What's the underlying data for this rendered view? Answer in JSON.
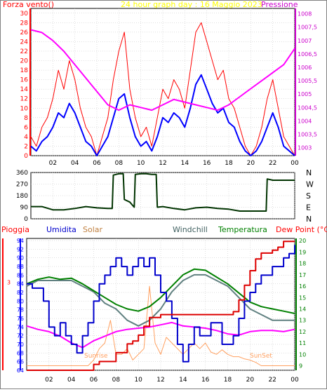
{
  "colors": {
    "bg": "#ffffff",
    "plot_bg": "#ffffff",
    "frame": "#000000",
    "grid": "#c0c0c0",
    "wind_gust": "#ff0000",
    "wind_avg": "#0000ff",
    "pressure": "#ff00ff",
    "direction": "#003300",
    "rain": "#dd0000",
    "humidity": "#0000cc",
    "solar": "#ffa060",
    "windchill": "#608080",
    "temperature": "#008000",
    "dewpoint": "#ff00ff",
    "axis_red": "#ff0000",
    "axis_blue": "#0000ff",
    "axis_magenta": "#cc00cc",
    "axis_green": "#008000",
    "title": "#ffff00"
  },
  "chart_data": [
    {
      "type": "line",
      "title": "24 hour graph day : 16 Maggio 2023",
      "left_label": "Forza vento()",
      "right_label": "Pressione",
      "x_ticks": [
        "02",
        "04",
        "06",
        "08",
        "10",
        "12",
        "14",
        "16",
        "18",
        "20",
        "22",
        "00"
      ],
      "x_range_hours": [
        0,
        24
      ],
      "y_left_ticks": [
        "30",
        "28",
        "26",
        "24",
        "22",
        "20",
        "18",
        "16",
        "14",
        "12",
        "10",
        "8",
        "6",
        "4",
        "2",
        "0"
      ],
      "y_left_range": [
        0,
        31
      ],
      "y_right_ticks": [
        "1008",
        "1007,5",
        "1007",
        "1006,5",
        "1006",
        "1005,5",
        "1005",
        "1004,5",
        "1004",
        "1003,5",
        "1003"
      ],
      "y_right_range": [
        1002.7,
        1008.2
      ],
      "grid": true,
      "series": [
        {
          "key": "gust",
          "x": [
            0,
            0.5,
            1,
            1.5,
            2,
            2.5,
            3,
            3.5,
            4,
            4.5,
            5,
            5.5,
            6,
            6.5,
            7,
            7.5,
            8,
            8.5,
            9,
            9.5,
            10,
            10.5,
            11,
            11.5,
            12,
            12.5,
            13,
            13.5,
            14,
            14.5,
            15,
            15.5,
            16,
            16.5,
            17,
            17.5,
            18,
            18.5,
            19,
            19.5,
            20,
            20.5,
            21,
            21.5,
            22,
            22.5,
            23,
            23.5,
            24
          ],
          "values": [
            4,
            2,
            6,
            8,
            12,
            18,
            14,
            20,
            16,
            10,
            6,
            4,
            0,
            4,
            8,
            16,
            22,
            26,
            14,
            8,
            4,
            6,
            2,
            8,
            14,
            12,
            16,
            14,
            10,
            18,
            26,
            28,
            24,
            20,
            16,
            18,
            12,
            10,
            6,
            2,
            0,
            2,
            6,
            12,
            16,
            10,
            4,
            2,
            0
          ]
        },
        {
          "key": "avg",
          "x": [
            0,
            0.5,
            1,
            1.5,
            2,
            2.5,
            3,
            3.5,
            4,
            4.5,
            5,
            5.5,
            6,
            6.5,
            7,
            7.5,
            8,
            8.5,
            9,
            9.5,
            10,
            10.5,
            11,
            11.5,
            12,
            12.5,
            13,
            13.5,
            14,
            14.5,
            15,
            15.5,
            16,
            16.5,
            17,
            17.5,
            18,
            18.5,
            19,
            19.5,
            20,
            20.5,
            21,
            21.5,
            22,
            22.5,
            23,
            23.5,
            24
          ],
          "values": [
            2,
            1,
            3,
            4,
            6,
            9,
            8,
            11,
            9,
            6,
            3,
            2,
            0,
            2,
            4,
            8,
            12,
            13,
            8,
            4,
            2,
            3,
            1,
            4,
            8,
            7,
            9,
            8,
            6,
            10,
            15,
            17,
            14,
            11,
            9,
            10,
            7,
            6,
            3,
            1,
            0,
            1,
            3,
            6,
            9,
            6,
            2,
            1,
            0
          ]
        },
        {
          "key": "pressure",
          "x": [
            0,
            1,
            2,
            3,
            4,
            5,
            6,
            7,
            8,
            9,
            10,
            11,
            12,
            13,
            14,
            15,
            16,
            17,
            18,
            19,
            20,
            21,
            22,
            23,
            24
          ],
          "values": [
            1007.4,
            1007.3,
            1007.0,
            1006.6,
            1006.1,
            1005.6,
            1005.1,
            1004.6,
            1004.4,
            1004.6,
            1004.5,
            1004.4,
            1004.6,
            1004.8,
            1004.7,
            1004.6,
            1004.5,
            1004.4,
            1004.6,
            1004.9,
            1005.2,
            1005.5,
            1005.8,
            1006.1,
            1006.7
          ]
        }
      ]
    },
    {
      "type": "line",
      "title": "",
      "y_right_ticks": [
        "N",
        "W",
        "S",
        "E",
        "N"
      ],
      "y_left_ticks": [
        "360",
        "270",
        "180",
        "90",
        "0"
      ],
      "y_left_range": [
        0,
        360
      ],
      "x_range_hours": [
        0,
        24
      ],
      "x_ticks": [
        "02",
        "04",
        "06",
        "08",
        "10",
        "12",
        "14",
        "16",
        "18",
        "20",
        "22",
        "00"
      ],
      "grid": true,
      "series": [
        {
          "key": "direction",
          "x": [
            0,
            1,
            2,
            3,
            4,
            5,
            6,
            7,
            7.4,
            7.5,
            8,
            8.4,
            8.5,
            9,
            9.4,
            9.5,
            10,
            10.5,
            11,
            11.4,
            11.5,
            12,
            13,
            14,
            15,
            16,
            17,
            18,
            19,
            20,
            21,
            21.4,
            21.5,
            22,
            23,
            24
          ],
          "values": [
            95,
            95,
            70,
            70,
            80,
            95,
            85,
            80,
            80,
            340,
            350,
            350,
            150,
            130,
            90,
            345,
            350,
            350,
            345,
            345,
            90,
            95,
            80,
            70,
            85,
            90,
            80,
            75,
            60,
            60,
            60,
            60,
            310,
            300,
            300,
            300
          ]
        }
      ]
    },
    {
      "type": "line",
      "title": "",
      "legend": [
        "Pioggia",
        "Umidita",
        "Solar",
        "Windchill",
        "Temperatura",
        "Dew Point (°C)"
      ],
      "legend_placement": "top",
      "x_ticks": [
        "02",
        "04",
        "06",
        "08",
        "10",
        "12",
        "14",
        "16",
        "18",
        "20",
        "22",
        "00"
      ],
      "x_range_hours": [
        0,
        24
      ],
      "y_left_ticks": [
        "94",
        "92",
        "90",
        "88",
        "86",
        "84",
        "82",
        "80",
        "78",
        "76",
        "74",
        "72",
        "70",
        "68",
        "66",
        "64"
      ],
      "y_left_range": [
        64,
        94.5
      ],
      "y_right_ticks": [
        "20",
        "19",
        "18",
        "17",
        "16",
        "15",
        "14",
        "13",
        "12",
        "11",
        "10",
        "9"
      ],
      "y_right_range": [
        8.6,
        20.2
      ],
      "rain_axis_label": "3",
      "annotations": [
        "Sunrise",
        "SunSet"
      ],
      "grid": true,
      "series": [
        {
          "key": "rain",
          "x": [
            0,
            5.5,
            6,
            6.5,
            7,
            8,
            9,
            9.5,
            10,
            10.5,
            11,
            12,
            14,
            16,
            18,
            18.5,
            19,
            19.5,
            20,
            20.5,
            21,
            22,
            22.5,
            23,
            24
          ],
          "values": [
            0,
            0,
            0.2,
            0.3,
            0.3,
            0.6,
            0.9,
            1.0,
            1.2,
            1.5,
            1.8,
            1.9,
            1.9,
            1.9,
            1.9,
            2.0,
            2.4,
            2.9,
            3.4,
            3.8,
            4.0,
            4.1,
            4.2,
            4.4,
            4.4
          ]
        },
        {
          "key": "humidity",
          "x": [
            0,
            0.5,
            1,
            1.5,
            2,
            2.5,
            3,
            3.5,
            4,
            4.5,
            5,
            5.5,
            6,
            6.5,
            7,
            7.5,
            8,
            8.5,
            9,
            9.5,
            10,
            10.5,
            11,
            11.5,
            12,
            12.5,
            13,
            13.5,
            14,
            14.5,
            15,
            15.5,
            16,
            16.5,
            17,
            17.5,
            18,
            18.5,
            19,
            19.5,
            20,
            20.5,
            21,
            21.5,
            22,
            22.5,
            23,
            23.5,
            24
          ],
          "values": [
            84,
            83,
            83,
            80,
            74,
            72,
            75,
            72,
            70,
            68,
            72,
            75,
            80,
            84,
            86,
            88,
            90,
            88,
            86,
            88,
            90,
            88,
            90,
            86,
            82,
            80,
            76,
            70,
            66,
            70,
            74,
            72,
            72,
            75,
            75,
            70,
            70,
            72,
            76,
            80,
            82,
            84,
            86,
            86,
            88,
            88,
            90,
            91,
            93
          ]
        },
        {
          "key": "solar",
          "x": [
            0,
            5.5,
            6,
            6.5,
            7,
            7.5,
            8,
            8.5,
            9,
            9.5,
            10,
            10.5,
            11,
            11.5,
            12,
            12.5,
            13,
            13.5,
            14,
            14.5,
            15,
            15.5,
            16,
            16.5,
            17,
            17.5,
            18,
            18.5,
            19,
            19.5,
            20,
            20.5,
            21,
            24
          ],
          "values": [
            9,
            9,
            9.5,
            10.5,
            11,
            13,
            10,
            10,
            10.5,
            9.5,
            10,
            10.5,
            16,
            11,
            10,
            11.5,
            11,
            10.5,
            10,
            10.5,
            11,
            10.5,
            11,
            10.2,
            10,
            10.4,
            10,
            9.8,
            9.8,
            9.6,
            9.5,
            9.3,
            9,
            9
          ]
        },
        {
          "key": "windchill",
          "x": [
            0,
            1,
            2,
            3,
            4,
            5,
            6,
            7,
            8,
            9,
            10,
            11,
            12,
            13,
            14,
            15,
            16,
            17,
            18,
            19,
            20,
            21,
            22,
            23,
            24
          ],
          "values": [
            16,
            16.5,
            16.5,
            16.5,
            16.5,
            16,
            15.5,
            14.5,
            14,
            13,
            12.5,
            13,
            14,
            15.5,
            16.5,
            17,
            17,
            16.5,
            16,
            15,
            14,
            13.5,
            13,
            13,
            13
          ]
        },
        {
          "key": "temperature",
          "x": [
            0,
            1,
            2,
            3,
            4,
            5,
            6,
            7,
            8,
            9,
            10,
            11,
            12,
            13,
            14,
            15,
            16,
            17,
            18,
            19,
            20,
            21,
            22,
            23,
            24
          ],
          "values": [
            16.2,
            16.6,
            16.8,
            16.6,
            16.7,
            16.2,
            15.6,
            15.0,
            14.4,
            14.0,
            13.8,
            14.2,
            15.0,
            16.0,
            17.0,
            17.5,
            17.4,
            16.8,
            16.2,
            15.4,
            14.6,
            14.2,
            14.0,
            13.8,
            13.6
          ]
        },
        {
          "key": "dewpoint",
          "x": [
            0,
            1,
            2,
            3,
            4,
            5,
            6,
            7,
            8,
            9,
            10,
            11,
            12,
            13,
            14,
            15,
            16,
            17,
            18,
            19,
            20,
            21,
            22,
            23,
            24
          ],
          "values": [
            12.5,
            12.2,
            12.0,
            11.6,
            11.0,
            10.6,
            11.2,
            11.6,
            12.0,
            12.2,
            12.3,
            12.4,
            12.6,
            12.8,
            12.5,
            12.4,
            12.3,
            12.1,
            11.8,
            11.7,
            12.0,
            12.1,
            12.1,
            12.0,
            12.2
          ]
        }
      ]
    }
  ]
}
